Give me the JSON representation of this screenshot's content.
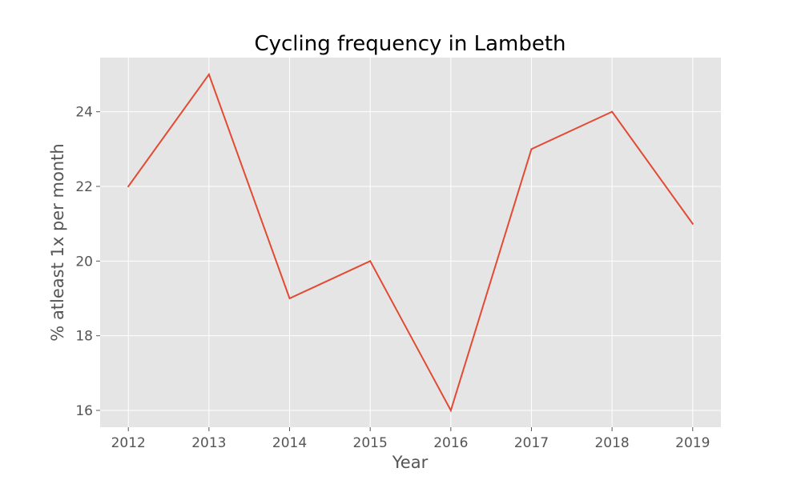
{
  "chart_data": {
    "type": "line",
    "title": "Cycling frequency in Lambeth",
    "xlabel": "Year",
    "ylabel": "% atleast 1x per month",
    "x": [
      "2012",
      "2013",
      "2014",
      "2015",
      "2016",
      "2017",
      "2018",
      "2019"
    ],
    "series": [
      {
        "values": [
          22,
          25,
          19,
          20,
          16,
          23,
          24,
          21
        ]
      }
    ],
    "yticks": [
      16,
      18,
      20,
      22,
      24
    ],
    "ylim": [
      15.55,
      25.45
    ],
    "xlim": [
      2011.65,
      2019.35
    ],
    "grid": true,
    "legend": "none",
    "colors": {
      "line": "#e24a33",
      "plot_background": "#e5e5e5",
      "grid": "#ffffff",
      "tick_text": "#555555",
      "title_text": "#000000"
    }
  }
}
